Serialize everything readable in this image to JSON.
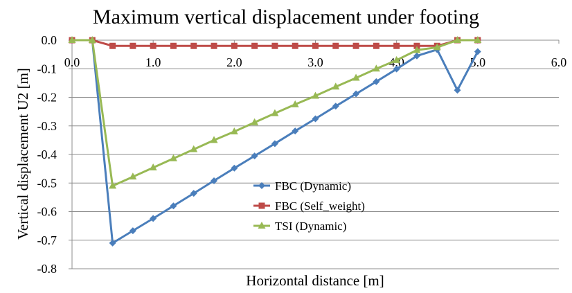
{
  "chart_data": {
    "type": "line",
    "title": "Maximum vertical displacement under footing",
    "xlabel": "Horizontal distance [m]",
    "ylabel": "Vertical displacement U2 [m]",
    "xlim": [
      0.0,
      6.0
    ],
    "ylim": [
      -0.8,
      0.0
    ],
    "x_ticks": [
      0.0,
      1.0,
      2.0,
      3.0,
      4.0,
      5.0,
      6.0
    ],
    "x_tick_labels": [
      "0.0",
      "1.0",
      "2.0",
      "3.0",
      "4.0",
      "5.0",
      "6.0"
    ],
    "y_ticks": [
      0.0,
      -0.1,
      -0.2,
      -0.3,
      -0.4,
      -0.5,
      -0.6,
      -0.7,
      -0.8
    ],
    "y_tick_labels": [
      "0.0",
      "-0.1",
      "-0.2",
      "-0.3",
      "-0.4",
      "-0.5",
      "-0.6",
      "-0.7",
      "-0.8"
    ],
    "x_axis_position": "top",
    "grid": "horizontal",
    "legend_position": "lower-center",
    "series": [
      {
        "name": "FBC (Dynamic)",
        "color": "#4a7ebb",
        "marker": "diamond",
        "x": [
          0.0,
          0.25,
          0.5,
          0.75,
          1.0,
          1.25,
          1.5,
          1.75,
          2.0,
          2.25,
          2.5,
          2.75,
          3.0,
          3.25,
          3.5,
          3.75,
          4.0,
          4.25,
          4.5,
          4.75,
          5.0
        ],
        "y": [
          0.0,
          0.0,
          -0.71,
          -0.667,
          -0.624,
          -0.58,
          -0.536,
          -0.492,
          -0.448,
          -0.405,
          -0.362,
          -0.318,
          -0.275,
          -0.231,
          -0.188,
          -0.145,
          -0.101,
          -0.055,
          -0.033,
          -0.175,
          -0.04
        ]
      },
      {
        "name": "FBC (Self_weight)",
        "color": "#be4b48",
        "marker": "square",
        "x": [
          0.0,
          0.25,
          0.5,
          0.75,
          1.0,
          1.25,
          1.5,
          1.75,
          2.0,
          2.25,
          2.5,
          2.75,
          3.0,
          3.25,
          3.5,
          3.75,
          4.0,
          4.25,
          4.5,
          4.75,
          5.0
        ],
        "y": [
          0.0,
          0.0,
          -0.02,
          -0.02,
          -0.02,
          -0.02,
          -0.02,
          -0.02,
          -0.02,
          -0.02,
          -0.02,
          -0.02,
          -0.02,
          -0.02,
          -0.02,
          -0.02,
          -0.02,
          -0.02,
          -0.02,
          0.0,
          0.0
        ]
      },
      {
        "name": "TSI (Dynamic)",
        "color": "#98b954",
        "marker": "triangle",
        "x": [
          0.0,
          0.25,
          0.5,
          0.75,
          1.0,
          1.25,
          1.5,
          1.75,
          2.0,
          2.25,
          2.5,
          2.75,
          3.0,
          3.25,
          3.5,
          3.75,
          4.0,
          4.25,
          4.5,
          4.75,
          5.0
        ],
        "y": [
          0.0,
          0.0,
          -0.51,
          -0.478,
          -0.446,
          -0.414,
          -0.382,
          -0.35,
          -0.32,
          -0.288,
          -0.256,
          -0.225,
          -0.195,
          -0.163,
          -0.132,
          -0.1,
          -0.07,
          -0.035,
          -0.025,
          0.0,
          0.0
        ]
      }
    ]
  }
}
